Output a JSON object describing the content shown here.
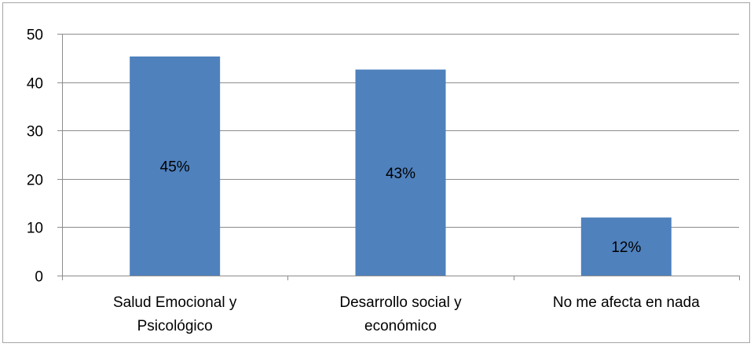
{
  "chart_data": {
    "type": "bar",
    "title": "",
    "xlabel": "",
    "ylabel": "",
    "categories": [
      [
        "Salud Emocional y",
        "Psicológico"
      ],
      [
        "Desarrollo social y",
        "económico"
      ],
      [
        "No me afecta en nada"
      ]
    ],
    "values": [
      45.3,
      42.6,
      12.0
    ],
    "data_labels": [
      "45%",
      "43%",
      "12%"
    ],
    "ylim": [
      0,
      50
    ],
    "yticks": [
      0,
      10,
      20,
      30,
      40,
      50
    ],
    "grid": true,
    "legend": "none",
    "colors": {
      "bar": "#4f81bd",
      "grid": "#8c8c8c",
      "axis": "#8c8c8c",
      "frame": "#a6a6a6"
    }
  }
}
